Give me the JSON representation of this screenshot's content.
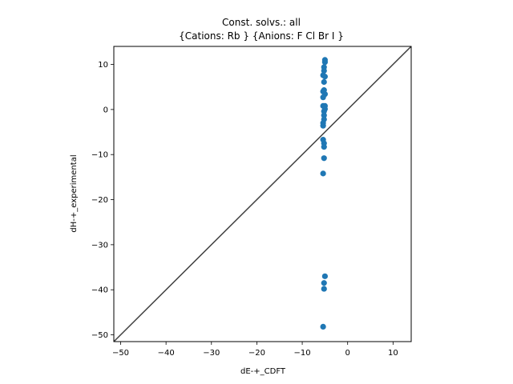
{
  "chart_data": {
    "type": "scatter",
    "title_line1": "Const. solvs.: all",
    "title_line2": "{Cations: Rb } {Anions: F Cl Br I }",
    "xlabel": "dE-+_CDFT",
    "ylabel": "dH-+_experimental",
    "xlim": [
      -51.5,
      14
    ],
    "ylim": [
      -51.5,
      14
    ],
    "xticks": [
      -50,
      -40,
      -30,
      -20,
      -10,
      0,
      10
    ],
    "yticks": [
      -50,
      -40,
      -30,
      -20,
      -10,
      0,
      10
    ],
    "xtick_labels": [
      "−50",
      "−40",
      "−30",
      "−20",
      "−10",
      "0",
      "10"
    ],
    "ytick_labels": [
      "−50",
      "−40",
      "−30",
      "−20",
      "−10",
      "0",
      "10"
    ],
    "grid": false,
    "identity_line": true,
    "colors": {
      "points": "#1f77b4",
      "line": "#404040"
    },
    "points": [
      {
        "x": -5.0,
        "y": 11.0
      },
      {
        "x": -5.0,
        "y": 10.5
      },
      {
        "x": -5.2,
        "y": 9.4
      },
      {
        "x": -5.2,
        "y": 8.6
      },
      {
        "x": -5.4,
        "y": 7.6
      },
      {
        "x": -5.0,
        "y": 7.3
      },
      {
        "x": -5.2,
        "y": 6.1
      },
      {
        "x": -5.2,
        "y": 4.3
      },
      {
        "x": -5.4,
        "y": 4.0
      },
      {
        "x": -5.0,
        "y": 3.4
      },
      {
        "x": -5.4,
        "y": 2.7
      },
      {
        "x": -5.4,
        "y": 0.8
      },
      {
        "x": -5.0,
        "y": 0.8
      },
      {
        "x": -5.0,
        "y": 0.1
      },
      {
        "x": -5.2,
        "y": -0.4
      },
      {
        "x": -5.2,
        "y": -1.3
      },
      {
        "x": -5.2,
        "y": -2.2
      },
      {
        "x": -5.4,
        "y": -3.0
      },
      {
        "x": -5.4,
        "y": -3.6
      },
      {
        "x": -5.4,
        "y": -6.7
      },
      {
        "x": -5.2,
        "y": -7.5
      },
      {
        "x": -5.2,
        "y": -8.3
      },
      {
        "x": -5.2,
        "y": -10.8
      },
      {
        "x": -5.4,
        "y": -14.2
      },
      {
        "x": -5.0,
        "y": -37.0
      },
      {
        "x": -5.2,
        "y": -38.5
      },
      {
        "x": -5.2,
        "y": -39.8
      },
      {
        "x": -5.4,
        "y": -48.2
      }
    ]
  }
}
